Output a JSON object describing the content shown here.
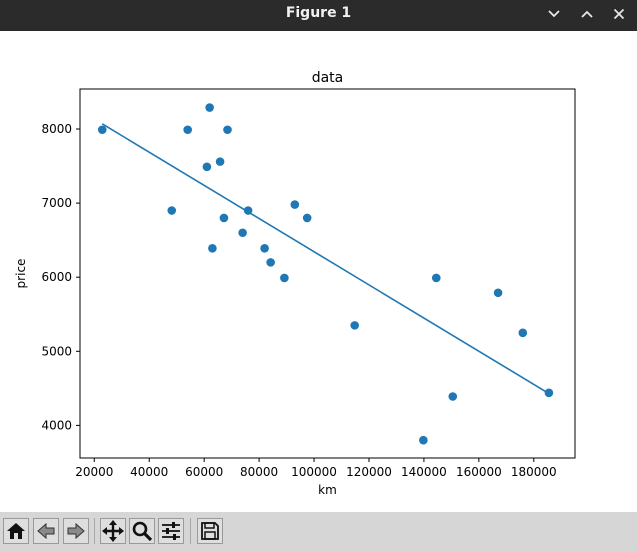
{
  "window": {
    "title": "Figure 1",
    "controls": [
      "chevron-down-icon",
      "chevron-up-icon",
      "close-icon"
    ]
  },
  "toolbar": {
    "buttons": [
      "home-icon",
      "back-arrow-icon",
      "forward-arrow-icon",
      "pan-icon",
      "zoom-icon",
      "configure-subplots-icon",
      "save-icon"
    ]
  },
  "colors": {
    "series": "#1f77b4",
    "titlebar": "#2b2b2b",
    "toolbar": "#d6d6d6"
  },
  "chart_data": {
    "type": "scatter",
    "title": "data",
    "xlabel": "km",
    "ylabel": "price",
    "xlim": [
      14800,
      195000
    ],
    "ylim": [
      3560,
      8540
    ],
    "xticks": [
      20000,
      40000,
      60000,
      80000,
      100000,
      120000,
      140000,
      160000,
      180000
    ],
    "yticks": [
      4000,
      5000,
      6000,
      7000,
      8000
    ],
    "grid": false,
    "legend": "none",
    "points": [
      {
        "x": 22900,
        "y": 7990
      },
      {
        "x": 48200,
        "y": 6900
      },
      {
        "x": 54000,
        "y": 7990
      },
      {
        "x": 61000,
        "y": 7490
      },
      {
        "x": 62000,
        "y": 8290
      },
      {
        "x": 63000,
        "y": 6390
      },
      {
        "x": 65800,
        "y": 7560
      },
      {
        "x": 67200,
        "y": 6800
      },
      {
        "x": 68500,
        "y": 7990
      },
      {
        "x": 74000,
        "y": 6600
      },
      {
        "x": 76000,
        "y": 6900
      },
      {
        "x": 82000,
        "y": 6390
      },
      {
        "x": 84200,
        "y": 6200
      },
      {
        "x": 89200,
        "y": 5990
      },
      {
        "x": 93000,
        "y": 6980
      },
      {
        "x": 97500,
        "y": 6800
      },
      {
        "x": 114800,
        "y": 5350
      },
      {
        "x": 139800,
        "y": 3800
      },
      {
        "x": 144500,
        "y": 5990
      },
      {
        "x": 150500,
        "y": 4390
      },
      {
        "x": 167000,
        "y": 5790
      },
      {
        "x": 176000,
        "y": 5250
      },
      {
        "x": 185500,
        "y": 4440
      }
    ],
    "fit_line": {
      "x": [
        22900,
        185500
      ],
      "y": [
        8070,
        4430
      ]
    }
  }
}
